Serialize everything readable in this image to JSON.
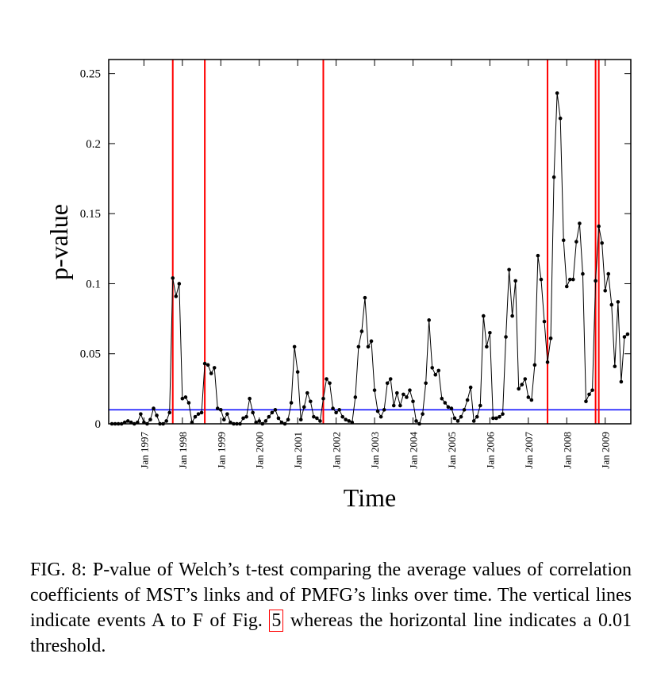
{
  "chart_data": {
    "type": "line",
    "y_label": "p-value",
    "x_label": "Time",
    "x": [
      "1996-03",
      "1996-04",
      "1996-05",
      "1996-06",
      "1996-07",
      "1996-08",
      "1996-09",
      "1996-10",
      "1996-11",
      "1996-12",
      "1997-01",
      "1997-02",
      "1997-03",
      "1997-04",
      "1997-05",
      "1997-06",
      "1997-07",
      "1997-08",
      "1997-09",
      "1997-10",
      "1997-11",
      "1997-12",
      "1998-01",
      "1998-02",
      "1998-03",
      "1998-04",
      "1998-05",
      "1998-06",
      "1998-07",
      "1998-08",
      "1998-09",
      "1998-10",
      "1998-11",
      "1998-12",
      "1999-01",
      "1999-02",
      "1999-03",
      "1999-04",
      "1999-05",
      "1999-06",
      "1999-07",
      "1999-08",
      "1999-09",
      "1999-10",
      "1999-11",
      "1999-12",
      "2000-01",
      "2000-02",
      "2000-03",
      "2000-04",
      "2000-05",
      "2000-06",
      "2000-07",
      "2000-08",
      "2000-09",
      "2000-10",
      "2000-11",
      "2000-12",
      "2001-01",
      "2001-02",
      "2001-03",
      "2001-04",
      "2001-05",
      "2001-06",
      "2001-07",
      "2001-08",
      "2001-09",
      "2001-10",
      "2001-11",
      "2001-12",
      "2002-01",
      "2002-02",
      "2002-03",
      "2002-04",
      "2002-05",
      "2002-06",
      "2002-07",
      "2002-08",
      "2002-09",
      "2002-10",
      "2002-11",
      "2002-12",
      "2003-01",
      "2003-02",
      "2003-03",
      "2003-04",
      "2003-05",
      "2003-06",
      "2003-07",
      "2003-08",
      "2003-09",
      "2003-10",
      "2003-11",
      "2003-12",
      "2004-01",
      "2004-02",
      "2004-03",
      "2004-04",
      "2004-05",
      "2004-06",
      "2004-07",
      "2004-08",
      "2004-09",
      "2004-10",
      "2004-11",
      "2004-12",
      "2005-01",
      "2005-02",
      "2005-03",
      "2005-04",
      "2005-05",
      "2005-06",
      "2005-07",
      "2005-08",
      "2005-09",
      "2005-10",
      "2005-11",
      "2005-12",
      "2006-01",
      "2006-02",
      "2006-03",
      "2006-04",
      "2006-05",
      "2006-06",
      "2006-07",
      "2006-08",
      "2006-09",
      "2006-10",
      "2006-11",
      "2006-12",
      "2007-01",
      "2007-02",
      "2007-03",
      "2007-04",
      "2007-05",
      "2007-06",
      "2007-07",
      "2007-08",
      "2007-09",
      "2007-10",
      "2007-11",
      "2007-12",
      "2008-01",
      "2008-02",
      "2008-03",
      "2008-04",
      "2008-05",
      "2008-06",
      "2008-07",
      "2008-08",
      "2008-09",
      "2008-10",
      "2008-11",
      "2008-12",
      "2009-01",
      "2009-02",
      "2009-03",
      "2009-04",
      "2009-05",
      "2009-06",
      "2009-07",
      "2009-08"
    ],
    "series": [
      {
        "color": "#000000",
        "values": [
          0,
          0,
          0,
          0,
          0.001,
          0.002,
          0.001,
          0,
          0.001,
          0.007,
          0.001,
          0,
          0.003,
          0.011,
          0.006,
          0,
          0,
          0.002,
          0.008,
          0.104,
          0.091,
          0.1,
          0.018,
          0.019,
          0.015,
          0.001,
          0.005,
          0.007,
          0.008,
          0.043,
          0.042,
          0.036,
          0.04,
          0.011,
          0.01,
          0.003,
          0.007,
          0.001,
          0,
          0,
          0,
          0.004,
          0.005,
          0.018,
          0.008,
          0.001,
          0.002,
          0,
          0.002,
          0.005,
          0.008,
          0.01,
          0.004,
          0.001,
          0,
          0.003,
          0.015,
          0.055,
          0.037,
          0.003,
          0.012,
          0.022,
          0.016,
          0.005,
          0.004,
          0.002,
          0.018,
          0.032,
          0.029,
          0.011,
          0.008,
          0.01,
          0.005,
          0.003,
          0.002,
          0.001,
          0.019,
          0.055,
          0.066,
          0.09,
          0.055,
          0.059,
          0.024,
          0.009,
          0.005,
          0.01,
          0.029,
          0.032,
          0.013,
          0.022,
          0.013,
          0.021,
          0.019,
          0.024,
          0.016,
          0.002,
          0,
          0.007,
          0.029,
          0.074,
          0.04,
          0.035,
          0.038,
          0.018,
          0.015,
          0.012,
          0.011,
          0.004,
          0.002,
          0.005,
          0.01,
          0.017,
          0.026,
          0.002,
          0.005,
          0.013,
          0.077,
          0.055,
          0.065,
          0.004,
          0.004,
          0.005,
          0.007,
          0.062,
          0.11,
          0.077,
          0.102,
          0.025,
          0.028,
          0.032,
          0.019,
          0.017,
          0.042,
          0.12,
          0.103,
          0.073,
          0.044,
          0.061,
          0.176,
          0.236,
          0.218,
          0.131,
          0.098,
          0.103,
          0.103,
          0.13,
          0.143,
          0.107,
          0.016,
          0.021,
          0.024,
          0.102,
          0.141,
          0.129,
          0.095,
          0.107,
          0.085,
          0.041,
          0.087,
          0.03,
          0.062,
          0.064
        ]
      }
    ],
    "markers": true,
    "xlim": [
      "1996-02",
      "2009-09"
    ],
    "xticks": [
      {
        "value": "1997-01",
        "label": "Jan 1997"
      },
      {
        "value": "1998-01",
        "label": "Jan 1998"
      },
      {
        "value": "1999-01",
        "label": "Jan 1999"
      },
      {
        "value": "2000-01",
        "label": "Jan 2000"
      },
      {
        "value": "2001-01",
        "label": "Jan 2001"
      },
      {
        "value": "2002-01",
        "label": "Jan 2002"
      },
      {
        "value": "2003-01",
        "label": "Jan 2003"
      },
      {
        "value": "2004-01",
        "label": "Jan 2004"
      },
      {
        "value": "2005-01",
        "label": "Jan 2005"
      },
      {
        "value": "2006-01",
        "label": "Jan 2006"
      },
      {
        "value": "2007-01",
        "label": "Jan 2007"
      },
      {
        "value": "2008-01",
        "label": "Jan 2008"
      },
      {
        "value": "2009-01",
        "label": "Jan 2009"
      }
    ],
    "ylim": [
      0,
      0.26
    ],
    "yticks": [
      0,
      0.05,
      0.1,
      0.15,
      0.2,
      0.25
    ],
    "events": {
      "color": "#ff0000",
      "x": [
        "1997-10",
        "1998-08",
        "2001-09",
        "2007-07",
        "2008-10",
        "2008-11"
      ]
    },
    "threshold": {
      "color": "#0000ff",
      "value": 0.01
    }
  },
  "caption": {
    "text": "FIG. 8: P-value of Welch’s t-test comparing the average values of correlation coefficients of MST’s links and of PMFG’s links over time. The vertical lines indicate events A to F of Fig.",
    "ref": "5",
    "text_after": "whereas the horizontal line indicates a 0.01 threshold."
  }
}
